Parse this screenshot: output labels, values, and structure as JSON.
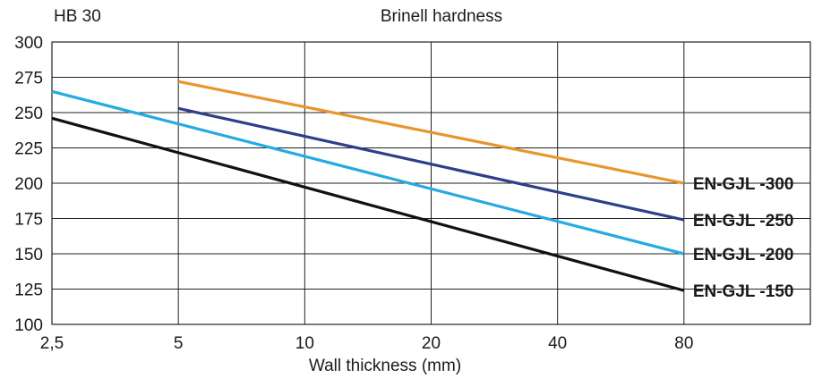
{
  "chart_data": {
    "type": "line",
    "title": "Brinell hardness",
    "ylabel": "HB 30",
    "xlabel": "Wall thickness (mm)",
    "x_scale": "log",
    "xlim": [
      2.5,
      160
    ],
    "ylim": [
      100,
      300
    ],
    "x_ticks": [
      {
        "value": 2.5,
        "label": "2,5"
      },
      {
        "value": 5,
        "label": "5"
      },
      {
        "value": 10,
        "label": "10"
      },
      {
        "value": 20,
        "label": "20"
      },
      {
        "value": 40,
        "label": "40"
      },
      {
        "value": 80,
        "label": "80"
      },
      {
        "value": 160,
        "label": ""
      }
    ],
    "y_ticks": [
      100,
      125,
      150,
      175,
      200,
      225,
      250,
      275,
      300
    ],
    "grid": true,
    "legend": "labels at line ends",
    "series": [
      {
        "name": "EN-GJL -300",
        "color": "#E8962E",
        "points": [
          [
            5,
            272
          ],
          [
            80,
            200
          ]
        ]
      },
      {
        "name": "EN-GJL -250",
        "color": "#2D3E8C",
        "points": [
          [
            5,
            253
          ],
          [
            80,
            174
          ]
        ]
      },
      {
        "name": "EN-GJL -200",
        "color": "#25AAE1",
        "points": [
          [
            2.5,
            265
          ],
          [
            80,
            150
          ]
        ]
      },
      {
        "name": "EN-GJL -150",
        "color": "#111111",
        "points": [
          [
            2.5,
            246
          ],
          [
            80,
            124
          ]
        ]
      }
    ]
  }
}
